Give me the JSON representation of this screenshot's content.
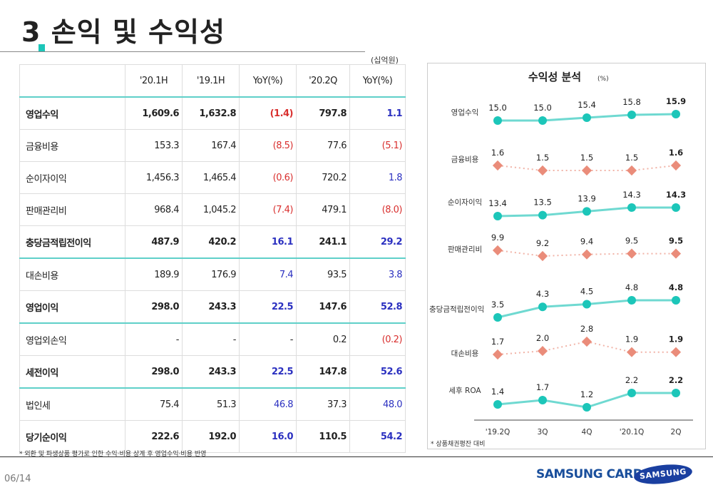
{
  "header": {
    "number": "3",
    "title": "손익 및 수익성"
  },
  "table": {
    "unit": "(십억원)",
    "columns": [
      "",
      "'20.1H",
      "'19.1H",
      "YoY(%)",
      "'20.2Q",
      "YoY(%)"
    ],
    "rows": [
      {
        "label": "영업수익",
        "values": [
          "1,609.6",
          "1,632.8",
          "(1.4)",
          "797.8",
          "1.1"
        ],
        "bold": true
      },
      {
        "label": "금융비용",
        "values": [
          "153.3",
          "167.4",
          "(8.5)",
          "77.6",
          "(5.1)"
        ],
        "bold": false
      },
      {
        "label": "순이자이익",
        "values": [
          "1,456.3",
          "1,465.4",
          "(0.6)",
          "720.2",
          "1.8"
        ],
        "bold": false
      },
      {
        "label": "판매관리비",
        "values": [
          "968.4",
          "1,045.2",
          "(7.4)",
          "479.1",
          "(8.0)"
        ],
        "bold": false
      },
      {
        "label": "충당금적립전이익",
        "values": [
          "487.9",
          "420.2",
          "16.1",
          "241.1",
          "29.2"
        ],
        "bold": true
      },
      {
        "label": "대손비용",
        "values": [
          "189.9",
          "176.9",
          "7.4",
          "93.5",
          "3.8"
        ],
        "bold": false
      },
      {
        "label": "영업이익",
        "values": [
          "298.0",
          "243.3",
          "22.5",
          "147.6",
          "52.8"
        ],
        "bold": true
      },
      {
        "label": "영업외손익",
        "values": [
          "-",
          "-",
          "-",
          "0.2",
          "(0.2)"
        ],
        "bold": false
      },
      {
        "label": "세전이익",
        "values": [
          "298.0",
          "243.3",
          "22.5",
          "147.8",
          "52.6"
        ],
        "bold": true
      },
      {
        "label": "법인세",
        "values": [
          "75.4",
          "51.3",
          "46.8",
          "37.3",
          "48.0"
        ],
        "bold": false
      },
      {
        "label": "당기순이익",
        "values": [
          "222.6",
          "192.0",
          "16.0",
          "110.5",
          "54.2"
        ],
        "bold": true
      }
    ],
    "footnote": "* 외환 및 파생상품 평가로 인한 수익·비용 상계 후 영업수익·비용 반영"
  },
  "chart_data": {
    "type": "line",
    "title": "수익성 분석",
    "unit": "(%)",
    "categories": [
      "'19.2Q",
      "3Q",
      "4Q",
      "'20.1Q",
      "2Q"
    ],
    "series": [
      {
        "name": "영업수익",
        "values": [
          15.0,
          15.0,
          15.4,
          15.8,
          15.9
        ],
        "labels": [
          "15.0",
          "15.0",
          "15.4",
          "15.8",
          "15.9"
        ],
        "style": "solid-circle",
        "color": "#1cc6b9"
      },
      {
        "name": "금융비용",
        "values": [
          1.6,
          1.5,
          1.5,
          1.5,
          1.6
        ],
        "labels": [
          "1.6",
          "1.5",
          "1.5",
          "1.5",
          "1.6"
        ],
        "style": "dotted-diamond",
        "color": "#ea8c7a"
      },
      {
        "name": "순이자이익",
        "values": [
          13.4,
          13.5,
          13.9,
          14.3,
          14.3
        ],
        "labels": [
          "13.4",
          "13.5",
          "13.9",
          "14.3",
          "14.3"
        ],
        "style": "solid-circle",
        "color": "#1cc6b9"
      },
      {
        "name": "판매관리비",
        "values": [
          9.9,
          9.2,
          9.4,
          9.5,
          9.5
        ],
        "labels": [
          "9.9",
          "9.2",
          "9.4",
          "9.5",
          "9.5"
        ],
        "style": "dotted-diamond",
        "color": "#ea8c7a"
      },
      {
        "name": "충당금적립전이익",
        "values": [
          3.5,
          4.3,
          4.5,
          4.8,
          4.8
        ],
        "labels": [
          "3.5",
          "4.3",
          "4.5",
          "4.8",
          "4.8"
        ],
        "style": "solid-circle",
        "color": "#1cc6b9"
      },
      {
        "name": "대손비용",
        "values": [
          1.7,
          2.0,
          2.8,
          1.9,
          1.9
        ],
        "labels": [
          "1.7",
          "2.0",
          "2.8",
          "1.9",
          "1.9"
        ],
        "style": "dotted-diamond",
        "color": "#ea8c7a"
      },
      {
        "name": "세후 ROA",
        "values": [
          1.4,
          1.7,
          1.2,
          2.2,
          2.2
        ],
        "labels": [
          "1.4",
          "1.7",
          "1.2",
          "2.2",
          "2.2"
        ],
        "style": "solid-circle",
        "color": "#1cc6b9"
      }
    ],
    "footnote": "* 상품채권평잔 대비"
  },
  "footer": {
    "page": "06/14",
    "brand": "SAMSUNG CARD",
    "logo": "SAMSUNG"
  }
}
